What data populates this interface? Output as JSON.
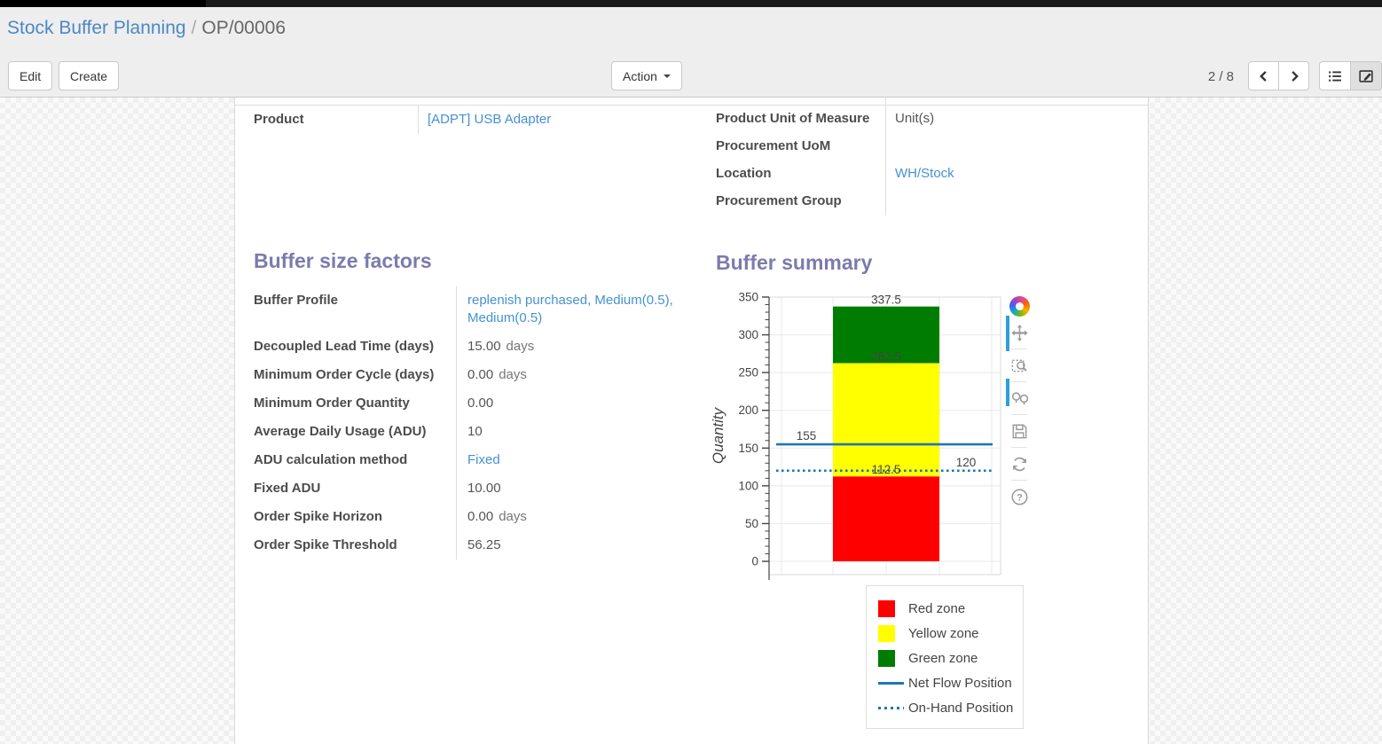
{
  "breadcrumb": {
    "parent": "Stock Buffer Planning",
    "separator": "/",
    "current": "OP/00006"
  },
  "toolbar": {
    "edit_label": "Edit",
    "create_label": "Create",
    "action_label": "Action",
    "pager": "2 / 8"
  },
  "form": {
    "product_field": {
      "label": "Product",
      "value": "[ADPT] USB Adapter",
      "link": true
    },
    "info_fields": [
      {
        "label": "Product Unit of Measure",
        "value": "Unit(s)"
      },
      {
        "label": "Procurement UoM",
        "value": ""
      },
      {
        "label": "Location",
        "value": "WH/Stock",
        "link": true
      },
      {
        "label": "Procurement Group",
        "value": ""
      }
    ],
    "buffer_size_factors": {
      "title": "Buffer size factors",
      "fields": [
        {
          "label": "Buffer Profile",
          "value": "replenish purchased, Medium(0.5), Medium(0.5)",
          "link": true
        },
        {
          "label": "Decoupled Lead Time (days)",
          "value": "15.00",
          "suffix": "days"
        },
        {
          "label": "Minimum Order Cycle (days)",
          "value": "0.00",
          "suffix": "days"
        },
        {
          "label": "Minimum Order Quantity",
          "value": "0.00"
        },
        {
          "label": "Average Daily Usage (ADU)",
          "value": "10"
        },
        {
          "label": "ADU calculation method",
          "value": "Fixed",
          "link": true
        },
        {
          "label": "Fixed ADU",
          "value": "10.00"
        },
        {
          "label": "Order Spike Horizon",
          "value": "0.00",
          "suffix": "days"
        },
        {
          "label": "Order Spike Threshold",
          "value": "56.25"
        }
      ]
    },
    "buffer_summary": {
      "title": "Buffer summary"
    }
  },
  "chart_data": {
    "type": "bar",
    "title": "Buffer summary",
    "xlabel": "",
    "ylabel": "Quantity",
    "ylim": [
      0,
      350
    ],
    "ytick_major": 50,
    "ytick_minor": 10,
    "grid": true,
    "legend_position": "below-right",
    "zones": [
      {
        "label": "Red zone",
        "from": 0,
        "to": 112.5,
        "color": "#ff0000"
      },
      {
        "label": "Yellow zone",
        "from": 112.5,
        "to": 262.5,
        "color": "#ffff00"
      },
      {
        "label": "Green zone",
        "from": 262.5,
        "to": 337.5,
        "color": "#007d00"
      }
    ],
    "lines": [
      {
        "label": "Net Flow Position",
        "value": 155,
        "dash": "solid",
        "color": "#1f77b4",
        "annotation_side": "left"
      },
      {
        "label": "On-Hand Position",
        "value": 120,
        "dash": "dot",
        "color": "#1f77b4",
        "annotation_side": "right"
      }
    ],
    "annotations": {
      "zone_labels": [
        "337.5",
        "262.5",
        "112.5"
      ],
      "line_labels": [
        "155",
        "120"
      ]
    }
  }
}
